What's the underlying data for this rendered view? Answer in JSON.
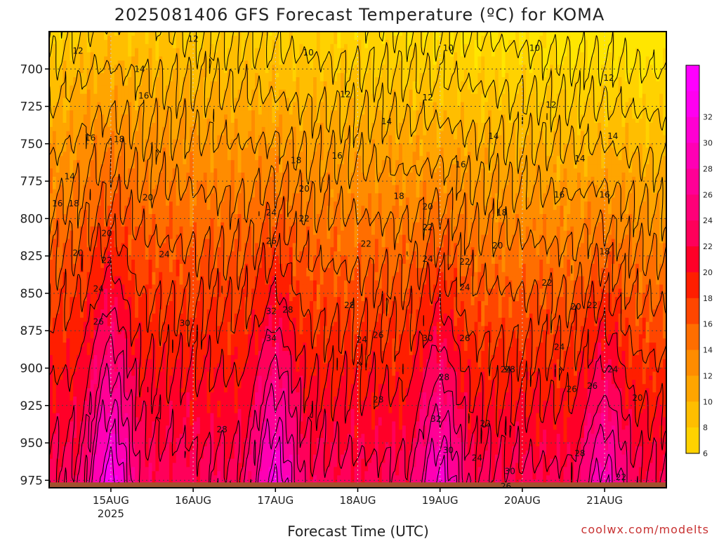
{
  "chart_data": {
    "type": "heatmap",
    "title": "2025081406 GFS Forecast Temperature (ºC) for KOMA",
    "xlabel": "Forecast Time (UTC)",
    "ylabel": "",
    "credit": "coolwx.com/modelts",
    "x_ticks": [
      {
        "label": "15AUG",
        "sub": "2025",
        "day": 15
      },
      {
        "label": "16AUG",
        "sub": "",
        "day": 16
      },
      {
        "label": "17AUG",
        "sub": "",
        "day": 17
      },
      {
        "label": "18AUG",
        "sub": "",
        "day": 18
      },
      {
        "label": "19AUG",
        "sub": "",
        "day": 19
      },
      {
        "label": "20AUG",
        "sub": "",
        "day": 20
      },
      {
        "label": "21AUG",
        "sub": "",
        "day": 21
      }
    ],
    "xlim_days": [
      14.25,
      21.75
    ],
    "y_ticks": [
      700,
      725,
      750,
      775,
      800,
      825,
      850,
      875,
      900,
      925,
      950,
      975
    ],
    "ylim_hpa": [
      675,
      980
    ],
    "y_inverted": true,
    "colorbar": {
      "labels": [
        6,
        8,
        10,
        12,
        14,
        16,
        18,
        20,
        22,
        24,
        26,
        28,
        30,
        32
      ],
      "levels": [
        {
          "lo": 4,
          "hi": 6,
          "color": "#ffe600"
        },
        {
          "lo": 6,
          "hi": 8,
          "color": "#ffd200"
        },
        {
          "lo": 8,
          "hi": 10,
          "color": "#ffbe00"
        },
        {
          "lo": 10,
          "hi": 12,
          "color": "#ffa500"
        },
        {
          "lo": 12,
          "hi": 14,
          "color": "#ff8c00"
        },
        {
          "lo": 14,
          "hi": 16,
          "color": "#ff6e00"
        },
        {
          "lo": 16,
          "hi": 18,
          "color": "#ff4600"
        },
        {
          "lo": 18,
          "hi": 20,
          "color": "#ff1e00"
        },
        {
          "lo": 20,
          "hi": 22,
          "color": "#ff0028"
        },
        {
          "lo": 22,
          "hi": 24,
          "color": "#ff005a"
        },
        {
          "lo": 24,
          "hi": 26,
          "color": "#ff0078"
        },
        {
          "lo": 26,
          "hi": 28,
          "color": "#ff0096"
        },
        {
          "lo": 28,
          "hi": 30,
          "color": "#ff00b4"
        },
        {
          "lo": 30,
          "hi": 32,
          "color": "#ff00d2"
        },
        {
          "lo": 32,
          "hi": 34,
          "color": "#ff00f0"
        },
        {
          "lo": 34,
          "hi": 36,
          "color": "#ff00ff"
        }
      ]
    },
    "ground_color": "#a0522d",
    "contour_labels": [
      {
        "text": "12",
        "day": 16.0,
        "p": 680
      },
      {
        "text": "12",
        "day": 14.6,
        "p": 688
      },
      {
        "text": "12",
        "day": 14.1,
        "p": 706
      },
      {
        "text": "14",
        "day": 15.35,
        "p": 700
      },
      {
        "text": "16",
        "day": 15.4,
        "p": 718
      },
      {
        "text": "10",
        "day": 17.4,
        "p": 689
      },
      {
        "text": "10",
        "day": 19.1,
        "p": 686
      },
      {
        "text": "10",
        "day": 20.15,
        "p": 686
      },
      {
        "text": "12",
        "day": 17.85,
        "p": 717
      },
      {
        "text": "12",
        "day": 18.85,
        "p": 719
      },
      {
        "text": "12",
        "day": 20.35,
        "p": 724
      },
      {
        "text": "12",
        "day": 21.05,
        "p": 706
      },
      {
        "text": "14",
        "day": 18.35,
        "p": 735
      },
      {
        "text": "14",
        "day": 19.65,
        "p": 745
      },
      {
        "text": "14",
        "day": 21.1,
        "p": 745
      },
      {
        "text": "14",
        "day": 20.7,
        "p": 760
      },
      {
        "text": "16",
        "day": 14.75,
        "p": 746
      },
      {
        "text": "18",
        "day": 15.1,
        "p": 747
      },
      {
        "text": "14",
        "day": 14.5,
        "p": 772
      },
      {
        "text": "16",
        "day": 14.35,
        "p": 790
      },
      {
        "text": "18",
        "day": 14.55,
        "p": 790
      },
      {
        "text": "18",
        "day": 17.25,
        "p": 761
      },
      {
        "text": "16",
        "day": 17.75,
        "p": 758
      },
      {
        "text": "16",
        "day": 19.25,
        "p": 764
      },
      {
        "text": "16",
        "day": 20.45,
        "p": 784
      },
      {
        "text": "16",
        "day": 21.0,
        "p": 784
      },
      {
        "text": "20",
        "day": 15.45,
        "p": 786
      },
      {
        "text": "20",
        "day": 17.35,
        "p": 780
      },
      {
        "text": "18",
        "day": 18.5,
        "p": 785
      },
      {
        "text": "20",
        "day": 18.85,
        "p": 792
      },
      {
        "text": "18",
        "day": 19.75,
        "p": 796
      },
      {
        "text": "24",
        "day": 16.95,
        "p": 796
      },
      {
        "text": "22",
        "day": 17.35,
        "p": 800
      },
      {
        "text": "20",
        "day": 14.6,
        "p": 823
      },
      {
        "text": "20",
        "day": 14.95,
        "p": 810
      },
      {
        "text": "22",
        "day": 14.95,
        "p": 828
      },
      {
        "text": "24",
        "day": 14.85,
        "p": 847
      },
      {
        "text": "26",
        "day": 14.85,
        "p": 869
      },
      {
        "text": "24",
        "day": 15.65,
        "p": 824
      },
      {
        "text": "26",
        "day": 16.95,
        "p": 815
      },
      {
        "text": "22",
        "day": 18.1,
        "p": 817
      },
      {
        "text": "22",
        "day": 18.85,
        "p": 806
      },
      {
        "text": "20",
        "day": 19.7,
        "p": 818
      },
      {
        "text": "18",
        "day": 21.0,
        "p": 822
      },
      {
        "text": "24",
        "day": 18.85,
        "p": 827
      },
      {
        "text": "22",
        "day": 19.3,
        "p": 829
      },
      {
        "text": "22",
        "day": 20.3,
        "p": 843
      },
      {
        "text": "24",
        "day": 19.3,
        "p": 846
      },
      {
        "text": "30",
        "day": 15.9,
        "p": 870
      },
      {
        "text": "32",
        "day": 16.95,
        "p": 862
      },
      {
        "text": "28",
        "day": 17.15,
        "p": 861
      },
      {
        "text": "34",
        "day": 16.95,
        "p": 880
      },
      {
        "text": "28",
        "day": 17.9,
        "p": 858
      },
      {
        "text": "24",
        "day": 18.05,
        "p": 881
      },
      {
        "text": "26",
        "day": 18.25,
        "p": 878
      },
      {
        "text": "30",
        "day": 18.85,
        "p": 880
      },
      {
        "text": "26",
        "day": 19.3,
        "p": 880
      },
      {
        "text": "20",
        "day": 20.65,
        "p": 859
      },
      {
        "text": "22",
        "day": 20.85,
        "p": 858
      },
      {
        "text": "24",
        "day": 20.45,
        "p": 886
      },
      {
        "text": "24",
        "day": 19.8,
        "p": 901
      },
      {
        "text": "28",
        "day": 19.85,
        "p": 901
      },
      {
        "text": "24",
        "day": 21.1,
        "p": 901
      },
      {
        "text": "26",
        "day": 20.6,
        "p": 914
      },
      {
        "text": "26",
        "day": 20.85,
        "p": 912
      },
      {
        "text": "28",
        "day": 19.05,
        "p": 906
      },
      {
        "text": "20",
        "day": 21.4,
        "p": 920
      },
      {
        "text": "28",
        "day": 18.25,
        "p": 921
      },
      {
        "text": "28",
        "day": 16.35,
        "p": 941
      },
      {
        "text": "32",
        "day": 18.95,
        "p": 934
      },
      {
        "text": "22",
        "day": 19.55,
        "p": 937
      },
      {
        "text": "30",
        "day": 19.1,
        "p": 955
      },
      {
        "text": "24",
        "day": 19.45,
        "p": 960
      },
      {
        "text": "28",
        "day": 20.7,
        "p": 957
      },
      {
        "text": "30",
        "day": 19.85,
        "p": 969
      },
      {
        "text": "26",
        "day": 19.8,
        "p": 979
      },
      {
        "text": "22",
        "day": 21.2,
        "p": 973
      }
    ]
  }
}
